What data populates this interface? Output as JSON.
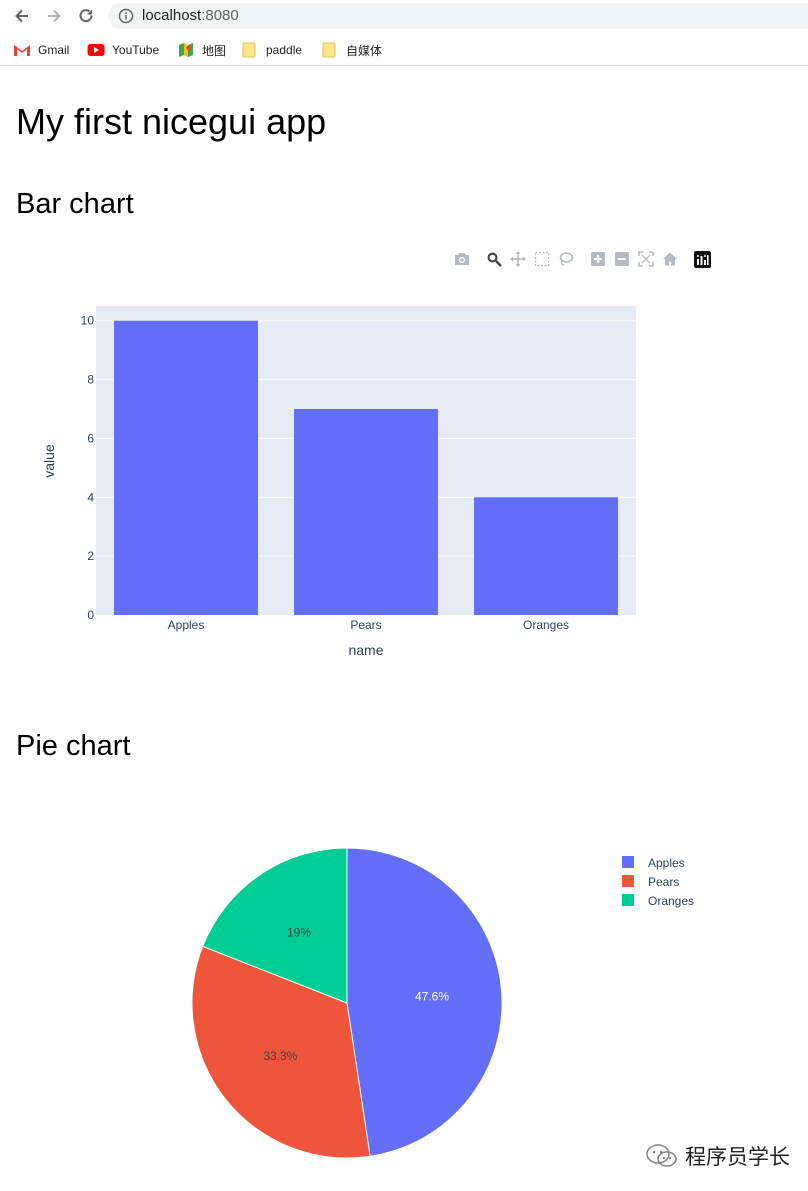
{
  "browser": {
    "url_host": "localhost",
    "url_port": ":8080",
    "bookmarks": [
      {
        "label": "Gmail",
        "icon": "gmail-icon"
      },
      {
        "label": "YouTube",
        "icon": "youtube-icon"
      },
      {
        "label": "地图",
        "icon": "maps-icon"
      },
      {
        "label": "paddle",
        "icon": "folder-icon"
      },
      {
        "label": "自媒体",
        "icon": "folder-icon"
      }
    ]
  },
  "page": {
    "title": "My first nicegui app",
    "bar_heading": "Bar chart",
    "pie_heading": "Pie chart"
  },
  "modebar": {
    "buttons": [
      "camera-icon",
      "zoom-icon",
      "pan-icon",
      "box-select-icon",
      "lasso-icon",
      "zoom-in-icon",
      "zoom-out-icon",
      "autoscale-icon",
      "home-icon",
      "plotly-logo-icon"
    ]
  },
  "colors": {
    "bar": "#636efa",
    "plot_bg": "#e5ecf6",
    "apples": "#636efa",
    "pears": "#ef553b",
    "oranges": "#00cc96"
  },
  "chart_data": [
    {
      "type": "bar",
      "categories": [
        "Apples",
        "Pears",
        "Oranges"
      ],
      "values": [
        10,
        7,
        4
      ],
      "xlabel": "name",
      "ylabel": "value",
      "ylim": [
        0,
        10.5
      ],
      "yticks": [
        0,
        2,
        4,
        6,
        8,
        10
      ],
      "grid": true
    },
    {
      "type": "pie",
      "labels": [
        "Apples",
        "Pears",
        "Oranges"
      ],
      "values": [
        10,
        7,
        4
      ],
      "slice_labels": [
        "47.6%",
        "33.3%",
        "19%"
      ],
      "legend_position": "top-right"
    }
  ],
  "watermark": "程序员学长"
}
